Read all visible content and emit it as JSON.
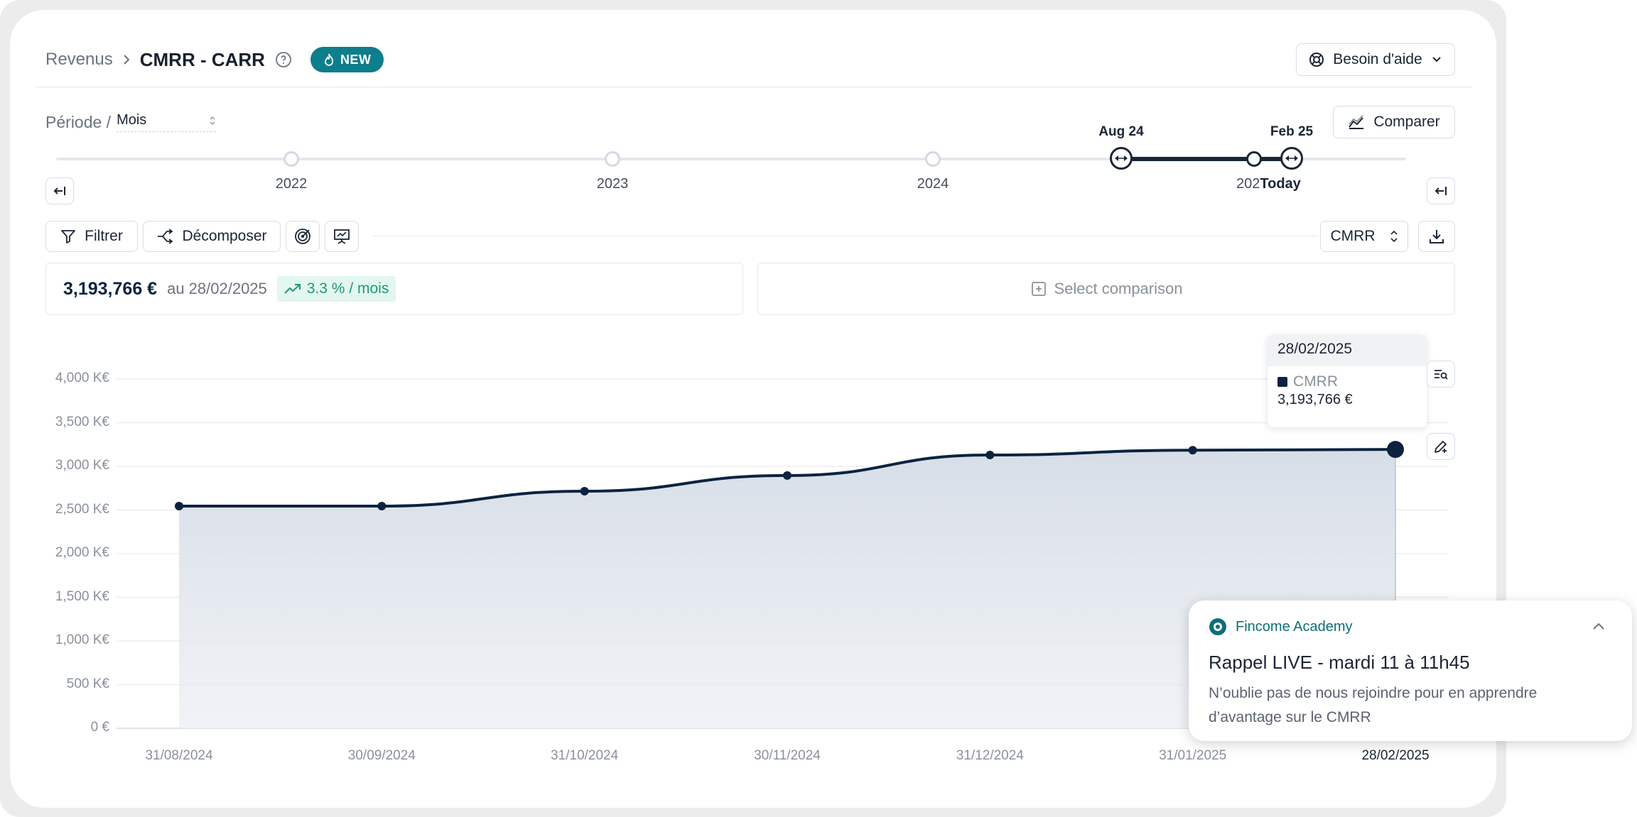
{
  "header": {
    "breadcrumb_parent": "Revenus",
    "title": "CMRR - CARR",
    "badge": "NEW",
    "help_button": "Besoin d'aide"
  },
  "period": {
    "label": "Période /",
    "value": "Mois",
    "compare_button": "Comparer"
  },
  "timeline": {
    "years": [
      "2022",
      "2023",
      "2024",
      "202"
    ],
    "range_start": "Aug 24",
    "range_end": "Feb 25",
    "today": "Today"
  },
  "toolbar": {
    "filter": "Filtrer",
    "decompose": "Décomposer",
    "metric_select": "CMRR"
  },
  "kpi": {
    "value": "3,193,766 €",
    "date": "au 28/02/2025",
    "growth": "3.3 % / mois",
    "comparison_placeholder": "Select comparison"
  },
  "chart_data": {
    "type": "area",
    "x": [
      "31/08/2024",
      "30/09/2024",
      "31/10/2024",
      "30/11/2024",
      "31/12/2024",
      "31/01/2025",
      "28/02/2025"
    ],
    "series": [
      {
        "name": "CMRR",
        "values": [
          2545000,
          2545000,
          2715000,
          2895000,
          3130000,
          3185000,
          3193766
        ],
        "color": "#0c2340"
      }
    ],
    "y_ticks": [
      "0 €",
      "500 K€",
      "1,000 K€",
      "1,500 K€",
      "2,000 K€",
      "2,500 K€",
      "3,000 K€",
      "3,500 K€",
      "4,000 K€"
    ],
    "ylim": [
      0,
      4000000
    ],
    "grid": true
  },
  "tooltip": {
    "date": "28/02/2025",
    "series": "CMRR",
    "value": "3,193,766 €"
  },
  "notification": {
    "source": "Fincome Academy",
    "title": "Rappel LIVE - mardi 11 à 11h45",
    "body_line1": "N’oublie pas de nous rejoindre pour en apprendre",
    "body_line2": "d’avantage sur le CMRR"
  },
  "colors": {
    "accent": "#0e7d8c",
    "series": "#0c2340",
    "growth_bg": "#e3f6ef",
    "growth_text": "#1c9a72"
  }
}
